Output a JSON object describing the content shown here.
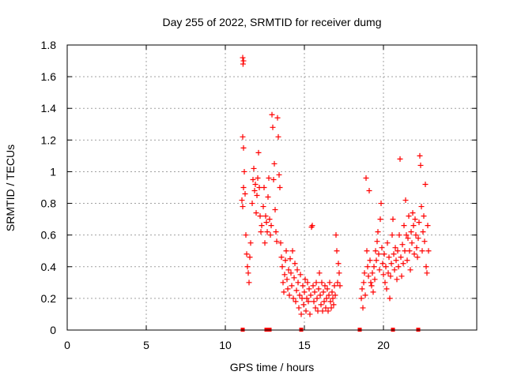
{
  "chart_data": {
    "type": "scatter",
    "title": "Day 255 of 2022, SRMTID for receiver dumg",
    "xlabel": "GPS time / hours",
    "ylabel": "SRMTID / TECUs",
    "xlim": [
      0,
      25.9
    ],
    "ylim": [
      0,
      1.8
    ],
    "xticks": [
      0,
      5,
      10,
      15,
      20
    ],
    "yticks": [
      0,
      0.2,
      0.4,
      0.6,
      0.8,
      1,
      1.2,
      1.4,
      1.6,
      1.8
    ],
    "xtick_labels": [
      "0",
      "5",
      "10",
      "15",
      "20"
    ],
    "ytick_labels": [
      "0",
      "0.2",
      "0.4",
      "0.6",
      "0.8",
      "1",
      "1.2",
      "1.4",
      "1.6",
      "1.8"
    ],
    "grid": true,
    "marker": "plus",
    "color": "#ff0000",
    "series": [
      {
        "name": "SRMTID",
        "points": [
          [
            11.1,
            1.72
          ],
          [
            11.12,
            1.68
          ],
          [
            11.15,
            1.7
          ],
          [
            11.05,
            0.82
          ],
          [
            11.1,
            0.78
          ],
          [
            11.15,
            0.9
          ],
          [
            11.2,
            1.0
          ],
          [
            11.25,
            0.86
          ],
          [
            11.1,
            1.22
          ],
          [
            11.15,
            1.15
          ],
          [
            11.3,
            0.6
          ],
          [
            11.35,
            0.48
          ],
          [
            11.4,
            0.4
          ],
          [
            11.45,
            0.36
          ],
          [
            11.5,
            0.3
          ],
          [
            11.55,
            0.46
          ],
          [
            11.6,
            0.55
          ],
          [
            11.7,
            0.8
          ],
          [
            11.75,
            0.95
          ],
          [
            11.8,
            1.02
          ],
          [
            11.85,
            0.88
          ],
          [
            11.9,
            0.92
          ],
          [
            11.95,
            0.74
          ],
          [
            12.0,
            0.85
          ],
          [
            12.05,
            0.96
          ],
          [
            12.1,
            1.12
          ],
          [
            12.15,
            0.9
          ],
          [
            12.2,
            0.72
          ],
          [
            12.25,
            0.62
          ],
          [
            12.3,
            0.66
          ],
          [
            12.4,
            0.78
          ],
          [
            12.45,
            0.9
          ],
          [
            12.5,
            0.55
          ],
          [
            12.55,
            0.72
          ],
          [
            12.6,
            0.68
          ],
          [
            12.65,
            0.62
          ],
          [
            12.7,
            0.84
          ],
          [
            12.75,
            0.96
          ],
          [
            12.8,
            0.7
          ],
          [
            12.85,
            0.6
          ],
          [
            12.9,
            0.66
          ],
          [
            12.95,
            1.36
          ],
          [
            13.0,
            1.28
          ],
          [
            13.05,
            0.95
          ],
          [
            13.1,
            1.05
          ],
          [
            13.15,
            0.76
          ],
          [
            13.2,
            0.62
          ],
          [
            13.25,
            0.56
          ],
          [
            13.3,
            1.34
          ],
          [
            13.35,
            1.22
          ],
          [
            13.4,
            0.98
          ],
          [
            13.45,
            0.9
          ],
          [
            13.5,
            0.55
          ],
          [
            13.55,
            0.46
          ],
          [
            13.6,
            0.4
          ],
          [
            13.65,
            0.3
          ],
          [
            13.7,
            0.24
          ],
          [
            13.75,
            0.35
          ],
          [
            13.8,
            0.44
          ],
          [
            13.85,
            0.5
          ],
          [
            13.9,
            0.32
          ],
          [
            13.95,
            0.26
          ],
          [
            14.0,
            0.38
          ],
          [
            14.05,
            0.22
          ],
          [
            14.1,
            0.45
          ],
          [
            14.15,
            0.36
          ],
          [
            14.2,
            0.28
          ],
          [
            14.25,
            0.5
          ],
          [
            14.3,
            0.2
          ],
          [
            14.35,
            0.33
          ],
          [
            14.4,
            0.42
          ],
          [
            14.45,
            0.18
          ],
          [
            14.5,
            0.25
          ],
          [
            14.55,
            0.38
          ],
          [
            14.6,
            0.3
          ],
          [
            14.65,
            0.14
          ],
          [
            14.7,
            0.22
          ],
          [
            14.75,
            0.35
          ],
          [
            14.8,
            0.1
          ],
          [
            14.85,
            0.2
          ],
          [
            14.9,
            0.28
          ],
          [
            14.95,
            0.16
          ],
          [
            15.0,
            0.24
          ],
          [
            15.05,
            0.32
          ],
          [
            15.1,
            0.12
          ],
          [
            15.15,
            0.2
          ],
          [
            15.2,
            0.3
          ],
          [
            15.25,
            0.18
          ],
          [
            15.3,
            0.26
          ],
          [
            15.35,
            0.1
          ],
          [
            15.4,
            0.22
          ],
          [
            15.45,
            0.65
          ],
          [
            15.5,
            0.66
          ],
          [
            15.55,
            0.28
          ],
          [
            15.6,
            0.18
          ],
          [
            15.65,
            0.24
          ],
          [
            15.7,
            0.14
          ],
          [
            15.75,
            0.3
          ],
          [
            15.8,
            0.2
          ],
          [
            15.85,
            0.12
          ],
          [
            15.9,
            0.26
          ],
          [
            15.95,
            0.36
          ],
          [
            16.0,
            0.22
          ],
          [
            16.05,
            0.16
          ],
          [
            16.1,
            0.3
          ],
          [
            16.15,
            0.12
          ],
          [
            16.2,
            0.24
          ],
          [
            16.25,
            0.18
          ],
          [
            16.3,
            0.28
          ],
          [
            16.35,
            0.14
          ],
          [
            16.4,
            0.2
          ],
          [
            16.45,
            0.26
          ],
          [
            16.5,
            0.12
          ],
          [
            16.55,
            0.22
          ],
          [
            16.6,
            0.3
          ],
          [
            16.65,
            0.18
          ],
          [
            16.7,
            0.14
          ],
          [
            16.75,
            0.24
          ],
          [
            16.8,
            0.2
          ],
          [
            16.85,
            0.16
          ],
          [
            16.9,
            0.28
          ],
          [
            16.95,
            0.22
          ],
          [
            17.0,
            0.6
          ],
          [
            17.05,
            0.5
          ],
          [
            17.1,
            0.3
          ],
          [
            17.15,
            0.42
          ],
          [
            17.2,
            0.36
          ],
          [
            17.25,
            0.28
          ],
          [
            18.6,
            0.2
          ],
          [
            18.65,
            0.26
          ],
          [
            18.7,
            0.14
          ],
          [
            18.75,
            0.3
          ],
          [
            18.8,
            0.36
          ],
          [
            18.85,
            0.22
          ],
          [
            18.9,
            0.96
          ],
          [
            18.95,
            0.5
          ],
          [
            19.0,
            0.4
          ],
          [
            19.05,
            0.34
          ],
          [
            19.1,
            0.88
          ],
          [
            19.15,
            0.44
          ],
          [
            19.2,
            0.3
          ],
          [
            19.25,
            0.28
          ],
          [
            19.3,
            0.36
          ],
          [
            19.35,
            0.24
          ],
          [
            19.4,
            0.4
          ],
          [
            19.45,
            0.32
          ],
          [
            19.5,
            0.5
          ],
          [
            19.55,
            0.44
          ],
          [
            19.6,
            0.56
          ],
          [
            19.65,
            0.62
          ],
          [
            19.7,
            0.48
          ],
          [
            19.75,
            0.38
          ],
          [
            19.8,
            0.7
          ],
          [
            19.85,
            0.8
          ],
          [
            19.9,
            0.52
          ],
          [
            19.95,
            0.42
          ],
          [
            20.0,
            0.35
          ],
          [
            20.05,
            0.48
          ],
          [
            20.1,
            0.3
          ],
          [
            20.15,
            0.4
          ],
          [
            20.2,
            0.26
          ],
          [
            20.25,
            0.55
          ],
          [
            20.3,
            0.36
          ],
          [
            20.35,
            0.46
          ],
          [
            20.4,
            0.2
          ],
          [
            20.45,
            0.34
          ],
          [
            20.5,
            0.42
          ],
          [
            20.55,
            0.6
          ],
          [
            20.6,
            0.7
          ],
          [
            20.65,
            0.48
          ],
          [
            20.7,
            0.38
          ],
          [
            20.75,
            0.52
          ],
          [
            20.8,
            0.44
          ],
          [
            20.85,
            0.32
          ],
          [
            20.9,
            0.5
          ],
          [
            20.95,
            0.4
          ],
          [
            21.0,
            0.6
          ],
          [
            21.05,
            1.08
          ],
          [
            21.1,
            0.46
          ],
          [
            21.15,
            0.34
          ],
          [
            21.2,
            0.54
          ],
          [
            21.25,
            0.42
          ],
          [
            21.3,
            0.66
          ],
          [
            21.35,
            0.5
          ],
          [
            21.4,
            0.82
          ],
          [
            21.45,
            0.6
          ],
          [
            21.5,
            0.44
          ],
          [
            21.55,
            0.58
          ],
          [
            21.6,
            0.72
          ],
          [
            21.65,
            0.5
          ],
          [
            21.7,
            0.38
          ],
          [
            21.75,
            0.62
          ],
          [
            21.8,
            0.55
          ],
          [
            21.85,
            0.74
          ],
          [
            21.9,
            0.66
          ],
          [
            21.95,
            0.48
          ],
          [
            22.0,
            0.7
          ],
          [
            22.05,
            0.6
          ],
          [
            22.1,
            0.52
          ],
          [
            22.15,
            0.46
          ],
          [
            22.2,
            0.58
          ],
          [
            22.25,
            0.68
          ],
          [
            22.3,
            1.1
          ],
          [
            22.35,
            1.04
          ],
          [
            22.4,
            0.78
          ],
          [
            22.45,
            0.5
          ],
          [
            22.5,
            0.62
          ],
          [
            22.55,
            0.72
          ],
          [
            22.6,
            0.56
          ],
          [
            22.65,
            0.92
          ],
          [
            22.7,
            0.4
          ],
          [
            22.75,
            0.36
          ],
          [
            22.8,
            0.66
          ],
          [
            22.85,
            0.5
          ]
        ]
      }
    ],
    "zero_markers_x": [
      11.1,
      12.6,
      12.8,
      14.8,
      18.5,
      20.6,
      22.2
    ]
  }
}
